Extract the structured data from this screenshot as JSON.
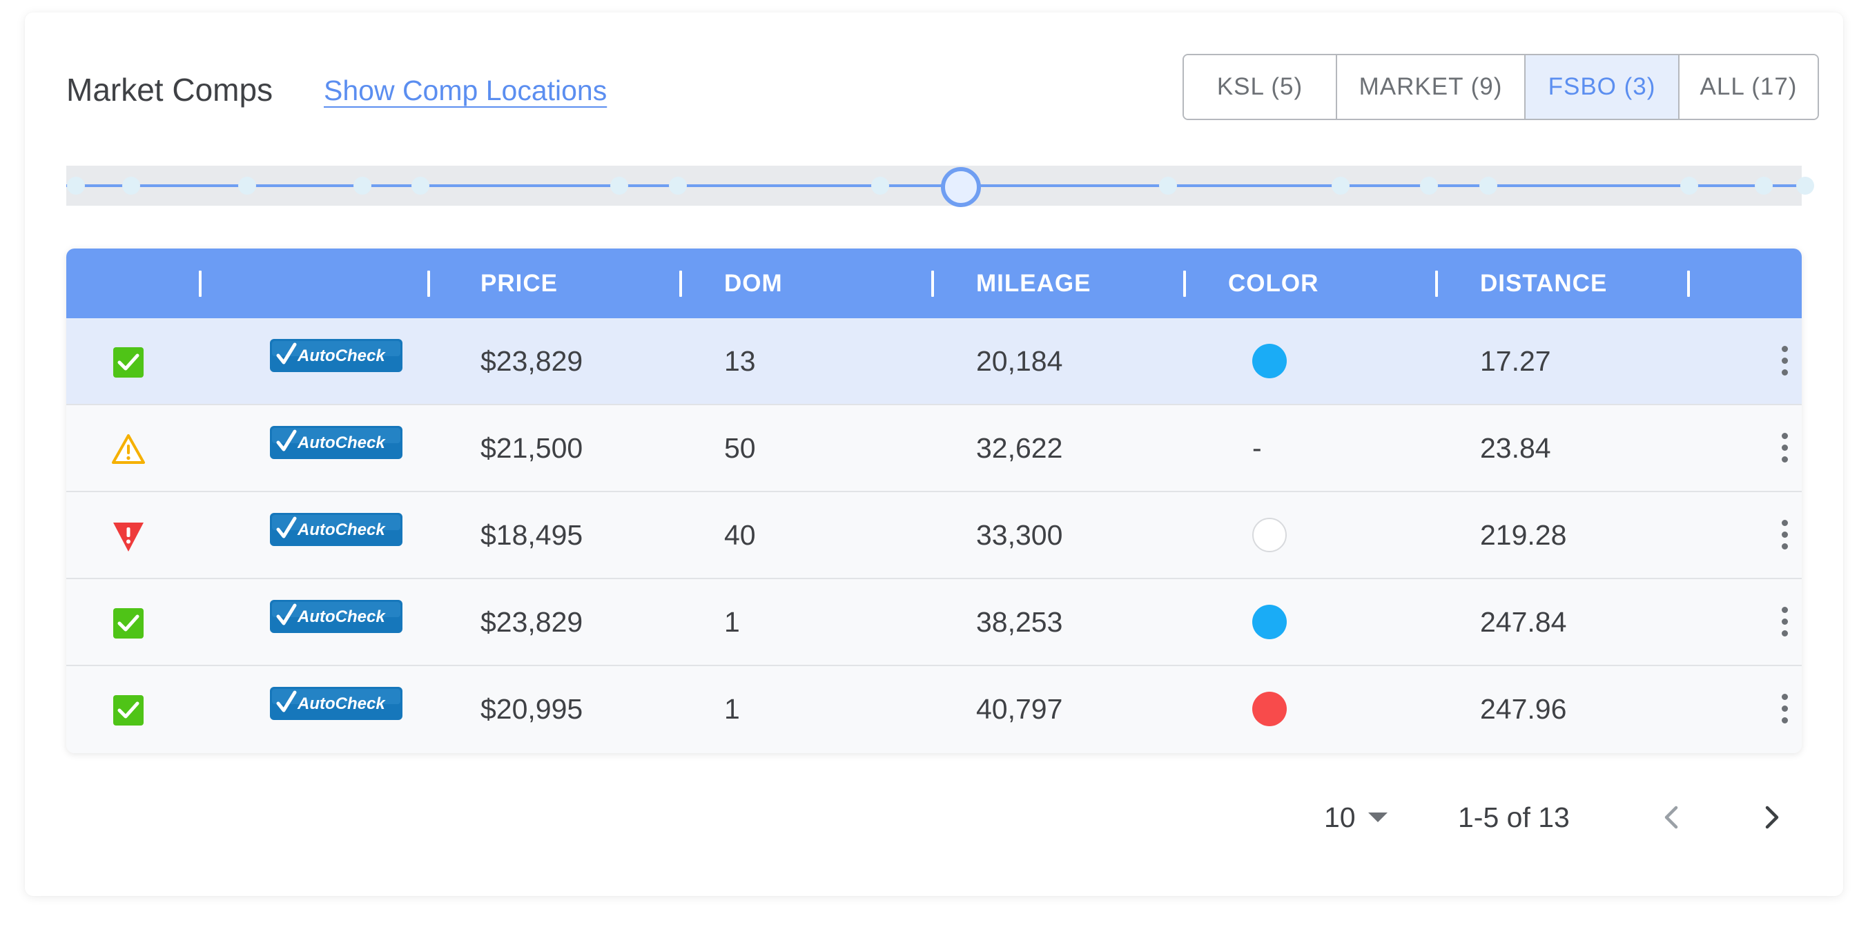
{
  "header": {
    "title": "Market Comps",
    "link_label": "Show Comp Locations"
  },
  "filters": [
    {
      "label": "KSL (5)",
      "active": false
    },
    {
      "label": "MARKET (9)",
      "active": false
    },
    {
      "label": "FSBO (3)",
      "active": true
    },
    {
      "label": "ALL (17)",
      "active": false
    }
  ],
  "table": {
    "columns": [
      "",
      "",
      "PRICE",
      "DOM",
      "MILEAGE",
      "COLOR",
      "DISTANCE"
    ],
    "badge_label": "AutoCheck",
    "rows": [
      {
        "status": "check",
        "badge": "AutoCheck",
        "price": "$23,829",
        "dom": "13",
        "mileage": "20,184",
        "color": "#1aacf6",
        "distance": "17.27",
        "selected": true
      },
      {
        "status": "warning",
        "badge": "AutoCheck",
        "price": "$21,500",
        "dom": "50",
        "mileage": "32,622",
        "color": "-",
        "distance": "23.84",
        "selected": false
      },
      {
        "status": "alert",
        "badge": "AutoCheck",
        "price": "$18,495",
        "dom": "40",
        "mileage": "33,300",
        "color": "#ffffff",
        "distance": "219.28",
        "selected": false
      },
      {
        "status": "check",
        "badge": "AutoCheck",
        "price": "$23,829",
        "dom": "1",
        "mileage": "38,253",
        "color": "#1aacf6",
        "distance": "247.84",
        "selected": false
      },
      {
        "status": "check",
        "badge": "AutoCheck",
        "price": "$20,995",
        "dom": "1",
        "mileage": "40,797",
        "color": "#f84b4b",
        "distance": "247.96",
        "selected": false
      }
    ]
  },
  "pagination": {
    "per_page": "10",
    "range": "1-5 of 13"
  },
  "colors": {
    "accent": "#6b9cf4",
    "link": "#5b8ef0",
    "check": "#4fc417",
    "warning": "#f5b000",
    "alert": "#ee3b3b",
    "autocheck": "#1677bb"
  },
  "icons": {
    "check": "check-box-icon",
    "warning": "warning-triangle-icon",
    "alert": "alert-triangle-icon",
    "more": "more-vertical-icon",
    "prev": "chevron-left-icon",
    "next": "chevron-right-icon",
    "caret": "caret-down-icon"
  }
}
